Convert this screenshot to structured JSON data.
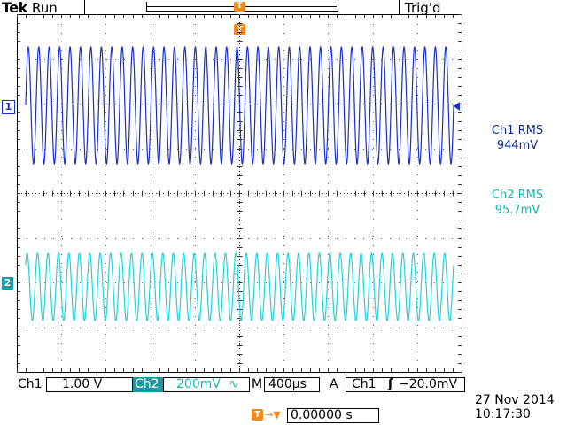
{
  "header": {
    "brand": "Tek",
    "run_status": "Run",
    "trigger_status": "Trig'd",
    "trigger_position_marker": "T"
  },
  "channels": {
    "ch1": {
      "marker": "1",
      "color": "#1a2fc8"
    },
    "ch2": {
      "marker": "2",
      "color": "#1a9aa0"
    }
  },
  "measurements": [
    {
      "label": "Ch1 RMS",
      "value": "944mV",
      "color": "#0f2b8a"
    },
    {
      "label": "Ch2 RMS",
      "value": "95.7mV",
      "color": "#17b3b3"
    }
  ],
  "footer": {
    "ch1_label": "Ch1",
    "ch1_scale": "1.00 V",
    "ch2_label": "Ch2",
    "ch2_scale": "200mV",
    "ch2_bw_symbol": "∿",
    "timebase_label": "M",
    "timebase": "400µs",
    "trigger_mode_label": "A",
    "trigger_source": "Ch1",
    "trigger_slope_symbol": "ʃ",
    "trigger_level": "−20.0mV",
    "position_marker": "T",
    "position_arrow": "→▼",
    "position_value": "0.00000 s",
    "date": "27 Nov 2014",
    "time": "10:17:30"
  }
}
